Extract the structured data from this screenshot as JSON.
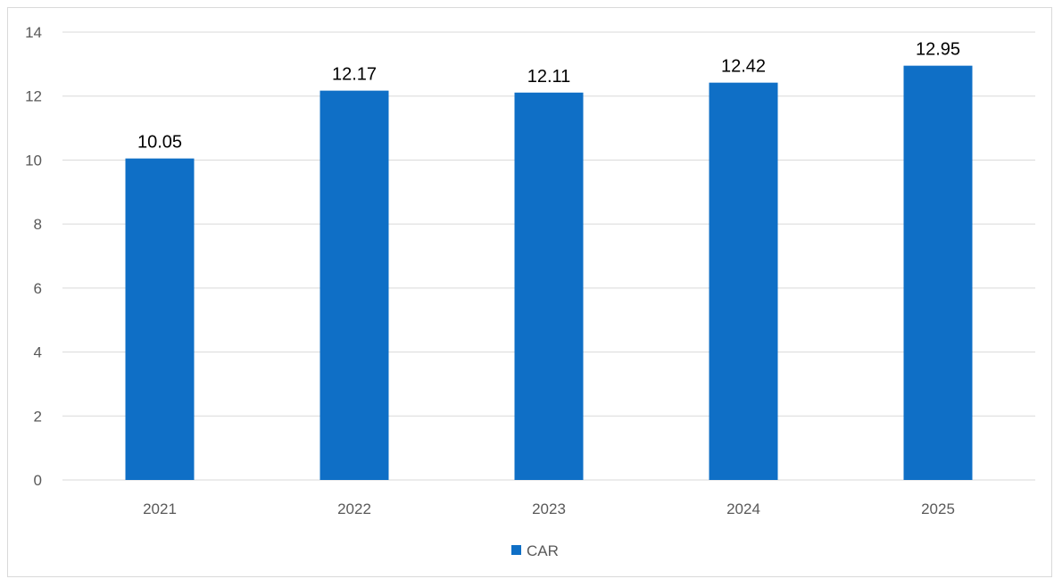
{
  "chart_data": {
    "type": "bar",
    "title": "",
    "xlabel": "",
    "ylabel": "",
    "categories": [
      "2021",
      "2022",
      "2023",
      "2024",
      "2025"
    ],
    "series": [
      {
        "name": "CAR",
        "color": "#0f6fc6",
        "values": [
          10.05,
          12.17,
          12.11,
          12.42,
          12.95
        ],
        "data_labels": [
          "10.05",
          "12.17",
          "12.11",
          "12.42",
          "12.95"
        ]
      }
    ],
    "ylim": [
      0,
      14
    ],
    "yticks": [
      0,
      2,
      4,
      6,
      8,
      10,
      12,
      14
    ],
    "grid": true,
    "legend": "bottom-center",
    "gridline_color": "#d9d9d9",
    "axis_label_color": "#595959"
  }
}
